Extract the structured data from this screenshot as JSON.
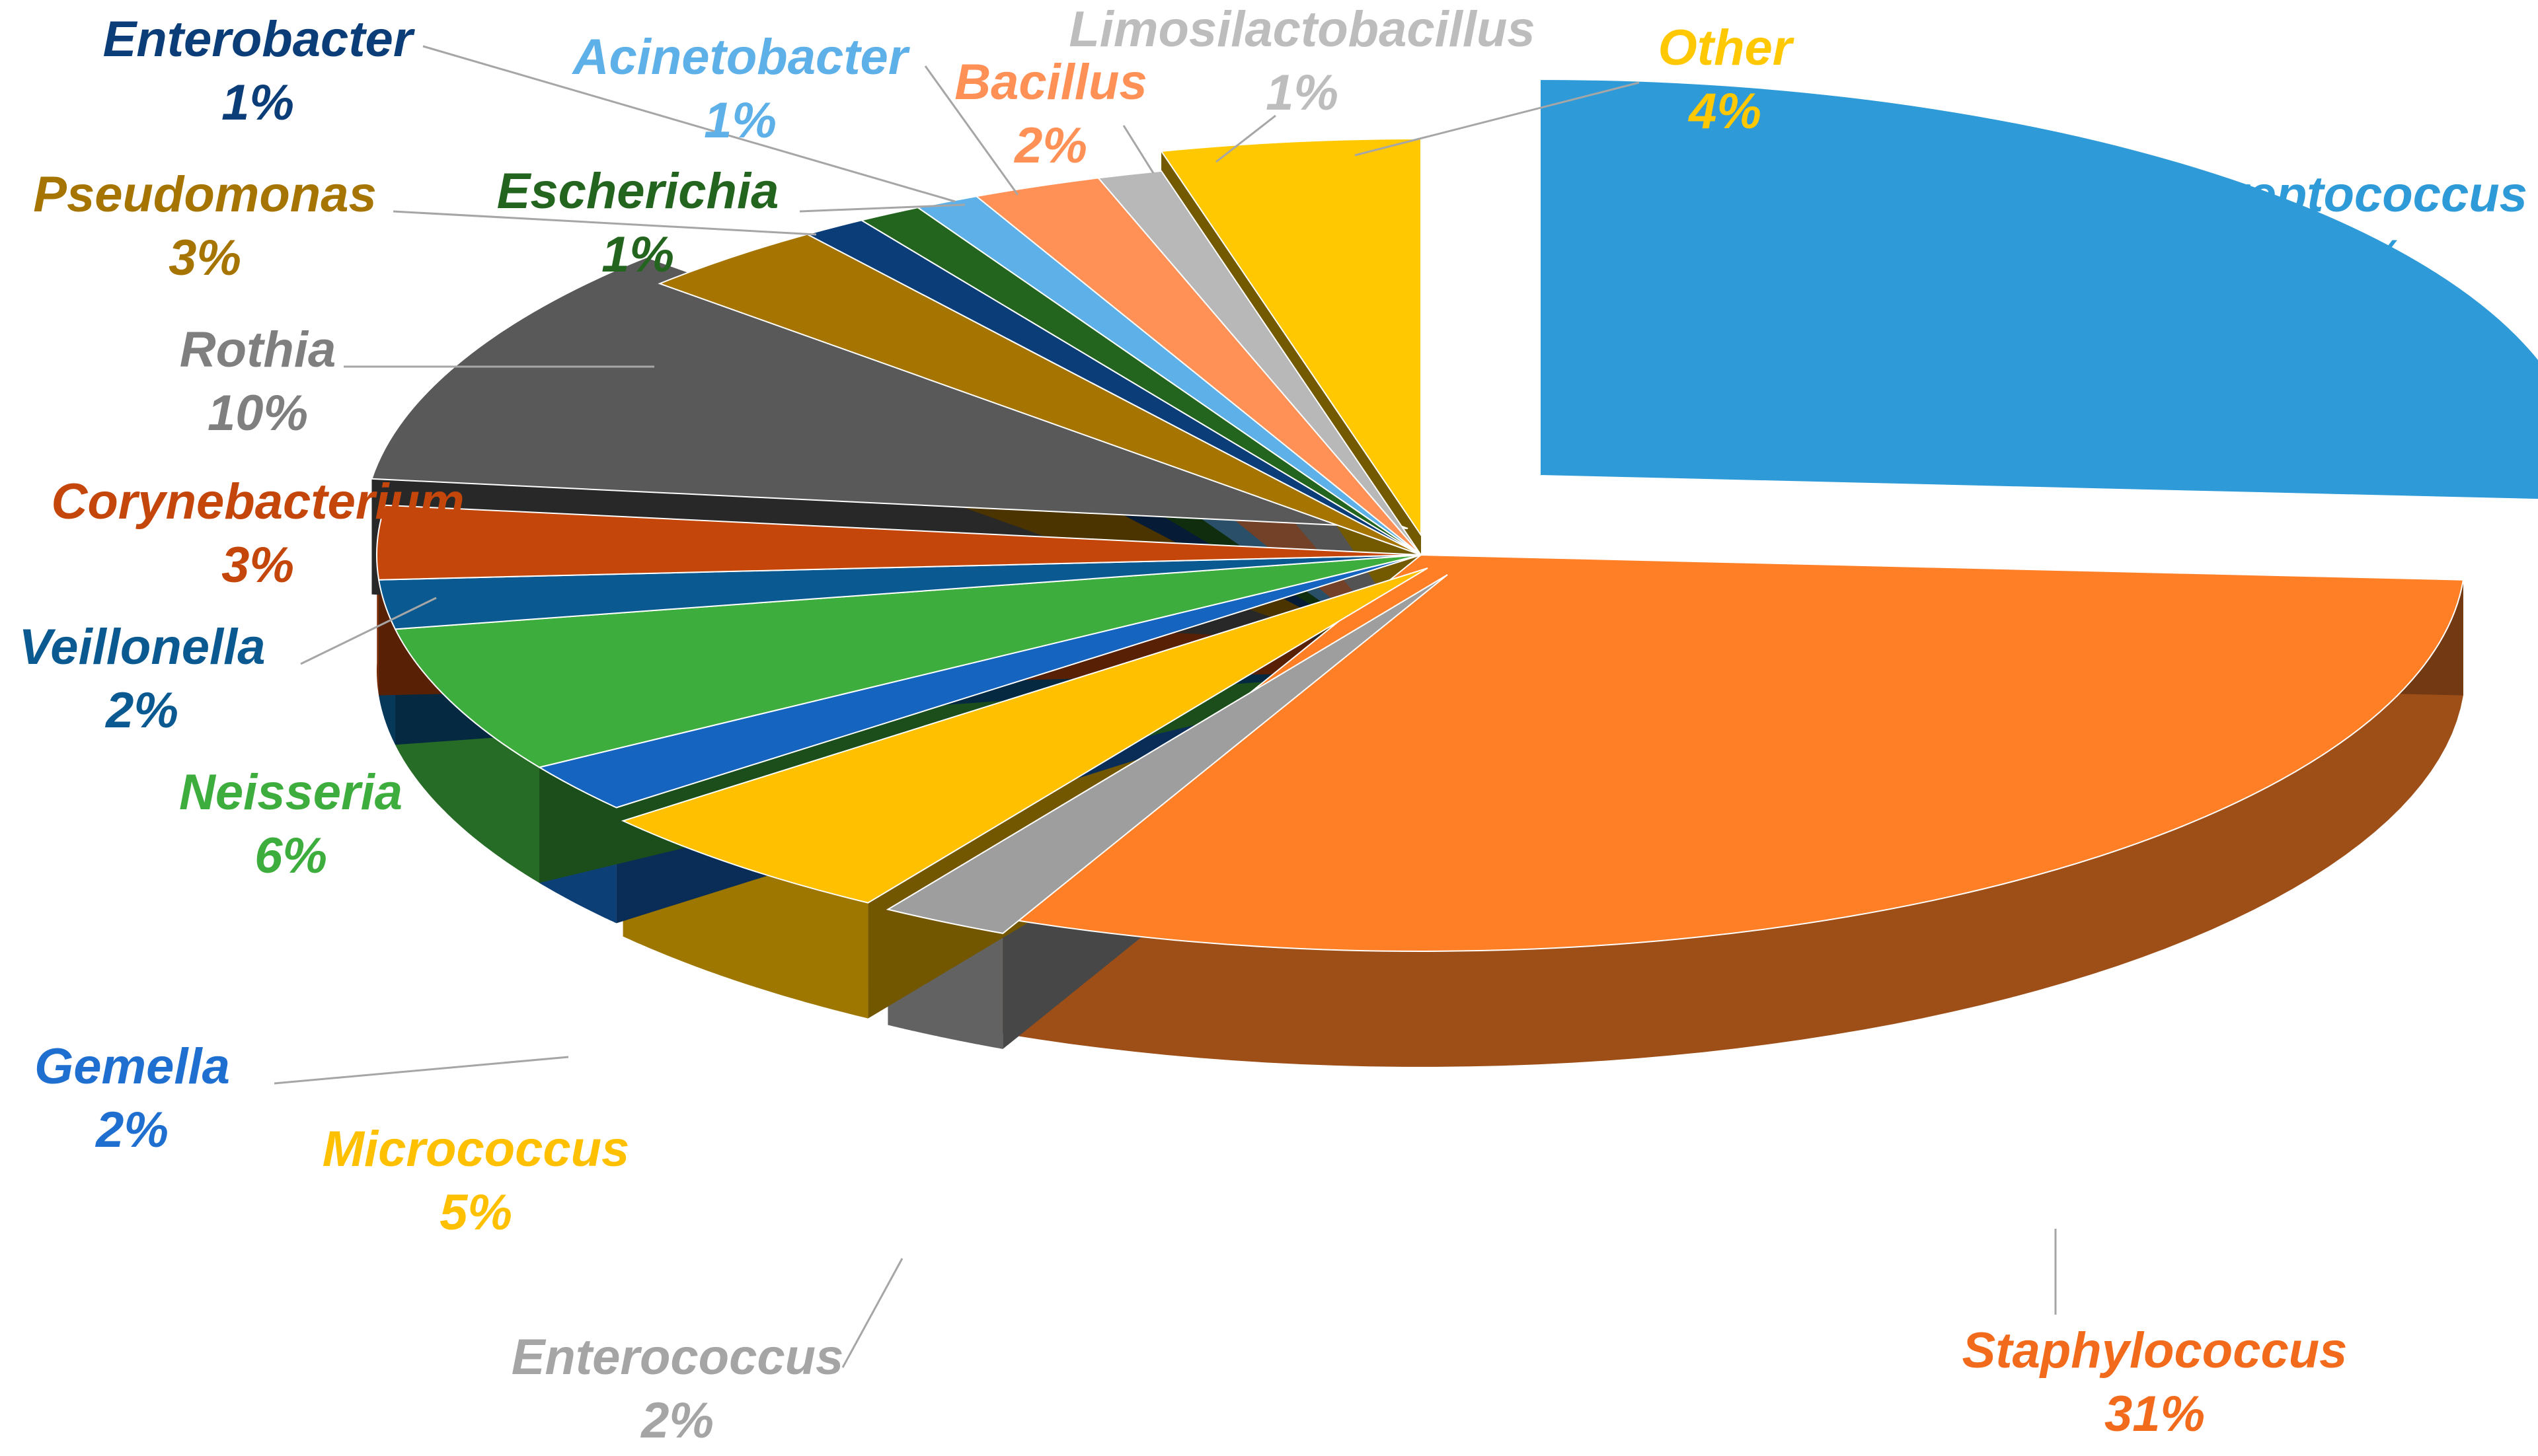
{
  "chart_data": {
    "type": "pie",
    "variant": "3d-exploded",
    "title": "",
    "legend": "none",
    "slices": [
      {
        "label": "Streptococcus",
        "value": 26,
        "pct_label": "26%",
        "color": "#2E9BD8",
        "label_color": "#2E9BD8"
      },
      {
        "label": "Staphylococcus",
        "value": 31,
        "pct_label": "31%",
        "color": "#FF7F27",
        "label_color": "#F26B1D"
      },
      {
        "label": "Enterococcus",
        "value": 2,
        "pct_label": "2%",
        "color": "#9E9E9E",
        "label_color": "#A5A5A5"
      },
      {
        "label": "Micrococcus",
        "value": 5,
        "pct_label": "5%",
        "color": "#FFC000",
        "label_color": "#FFC000"
      },
      {
        "label": "Gemella",
        "value": 2,
        "pct_label": "2%",
        "color": "#1565C0",
        "label_color": "#1F6FD0"
      },
      {
        "label": "Neisseria",
        "value": 6,
        "pct_label": "6%",
        "color": "#3DAD3D",
        "label_color": "#3DAD3D"
      },
      {
        "label": "Veillonella",
        "value": 2,
        "pct_label": "2%",
        "color": "#0A5A91",
        "label_color": "#0A5A91"
      },
      {
        "label": "Corynebacterium",
        "value": 3,
        "pct_label": "3%",
        "color": "#C4460A",
        "label_color": "#C4460A"
      },
      {
        "label": "Rothia",
        "value": 10,
        "pct_label": "10%",
        "color": "#595959",
        "label_color": "#7F7F7F"
      },
      {
        "label": "Pseudomonas",
        "value": 3,
        "pct_label": "3%",
        "color": "#A67400",
        "label_color": "#A67400"
      },
      {
        "label": "Enterobacter",
        "value": 1,
        "pct_label": "1%",
        "color": "#0B3D78",
        "label_color": "#0B3D78"
      },
      {
        "label": "Escherichia",
        "value": 1,
        "pct_label": "1%",
        "color": "#23651F",
        "label_color": "#23651F"
      },
      {
        "label": "Acinetobacter",
        "value": 1,
        "pct_label": "1%",
        "color": "#5EB0E8",
        "label_color": "#5EB0E8"
      },
      {
        "label": "Bacillus",
        "value": 2,
        "pct_label": "2%",
        "color": "#FF9157",
        "label_color": "#FF9157"
      },
      {
        "label": "Limosilactobacillus",
        "value": 1,
        "pct_label": "1%",
        "color": "#B8B8B8",
        "label_color": "#BDBDBD"
      },
      {
        "label": "Other",
        "value": 4,
        "pct_label": "4%",
        "color": "#FFC800",
        "label_color": "#FFC800"
      }
    ]
  }
}
